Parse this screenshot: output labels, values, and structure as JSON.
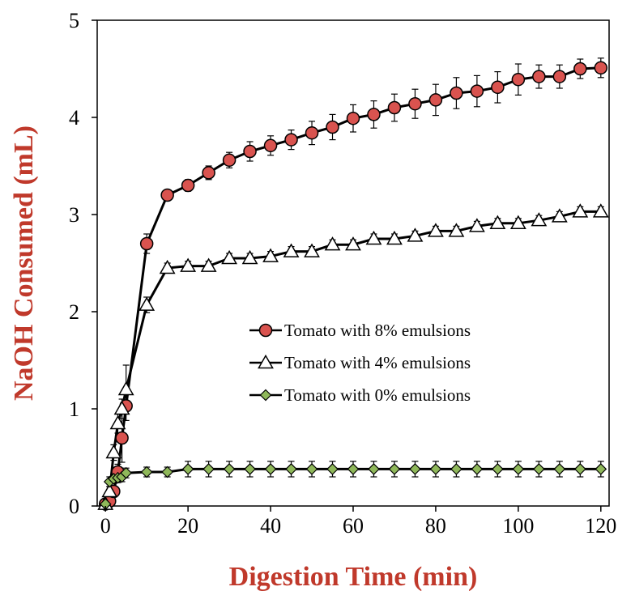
{
  "chart_data": {
    "type": "line",
    "title": "",
    "xlabel": "Digestion Time (min)",
    "ylabel": "NaOH Consumed (mL)",
    "xlim": [
      -2,
      122
    ],
    "ylim": [
      0,
      5
    ],
    "xticks": [
      0,
      20,
      40,
      60,
      80,
      100,
      120
    ],
    "yticks": [
      0,
      1,
      2,
      3,
      4,
      5
    ],
    "grid": false,
    "legend_position": "center-right",
    "series": [
      {
        "name": "Tomato with 8% emulsions",
        "marker": "circle",
        "marker_color": "#d9534f",
        "x": [
          0,
          1,
          2,
          3,
          4,
          5,
          10,
          15,
          20,
          25,
          30,
          35,
          40,
          45,
          50,
          55,
          60,
          65,
          70,
          75,
          80,
          85,
          90,
          95,
          100,
          105,
          110,
          115,
          120
        ],
        "y": [
          0.02,
          0.05,
          0.15,
          0.35,
          0.7,
          1.03,
          2.7,
          3.2,
          3.3,
          3.43,
          3.56,
          3.65,
          3.71,
          3.77,
          3.84,
          3.9,
          3.99,
          4.03,
          4.1,
          4.14,
          4.18,
          4.25,
          4.27,
          4.31,
          4.39,
          4.42,
          4.42,
          4.5,
          4.51
        ],
        "err": [
          0.02,
          0.02,
          0.05,
          0.08,
          0.25,
          0.15,
          0.1,
          0.05,
          0.06,
          0.07,
          0.08,
          0.1,
          0.1,
          0.1,
          0.12,
          0.13,
          0.14,
          0.14,
          0.14,
          0.15,
          0.16,
          0.16,
          0.16,
          0.16,
          0.16,
          0.12,
          0.12,
          0.1,
          0.1
        ]
      },
      {
        "name": "Tomato with 4% emulsions",
        "marker": "triangle",
        "marker_color": "#ffffff",
        "x": [
          0,
          1,
          2,
          3,
          4,
          5,
          10,
          15,
          20,
          25,
          30,
          35,
          40,
          45,
          50,
          55,
          60,
          65,
          70,
          75,
          80,
          85,
          90,
          95,
          100,
          105,
          110,
          115,
          120
        ],
        "y": [
          0.02,
          0.15,
          0.55,
          0.85,
          1.0,
          1.2,
          2.07,
          2.45,
          2.47,
          2.47,
          2.55,
          2.55,
          2.57,
          2.62,
          2.62,
          2.69,
          2.69,
          2.75,
          2.75,
          2.78,
          2.83,
          2.83,
          2.88,
          2.91,
          2.91,
          2.94,
          2.98,
          3.03,
          3.03
        ],
        "err": [
          0.02,
          0.05,
          0.08,
          0.1,
          0.1,
          0.25,
          0.08,
          0.05,
          0.05,
          0.05,
          0.05,
          0.05,
          0.05,
          0.05,
          0.05,
          0.05,
          0.05,
          0.05,
          0.05,
          0.05,
          0.05,
          0.05,
          0.05,
          0.05,
          0.05,
          0.05,
          0.05,
          0.05,
          0.05
        ]
      },
      {
        "name": "Tomato with 0% emulsions",
        "marker": "diamond",
        "marker_color": "#8fb85a",
        "x": [
          0,
          1,
          2,
          3,
          4,
          5,
          10,
          15,
          20,
          25,
          30,
          35,
          40,
          45,
          50,
          55,
          60,
          65,
          70,
          75,
          80,
          85,
          90,
          95,
          100,
          105,
          110,
          115,
          120
        ],
        "y": [
          0.02,
          0.25,
          0.28,
          0.29,
          0.3,
          0.34,
          0.35,
          0.35,
          0.38,
          0.38,
          0.38,
          0.38,
          0.38,
          0.38,
          0.38,
          0.38,
          0.38,
          0.38,
          0.38,
          0.38,
          0.38,
          0.38,
          0.38,
          0.38,
          0.38,
          0.38,
          0.38,
          0.38,
          0.38
        ],
        "err": [
          0.02,
          0.05,
          0.05,
          0.05,
          0.05,
          0.05,
          0.05,
          0.05,
          0.08,
          0.08,
          0.08,
          0.08,
          0.08,
          0.08,
          0.08,
          0.08,
          0.08,
          0.08,
          0.08,
          0.08,
          0.08,
          0.08,
          0.08,
          0.08,
          0.08,
          0.08,
          0.08,
          0.08,
          0.08
        ]
      }
    ]
  }
}
